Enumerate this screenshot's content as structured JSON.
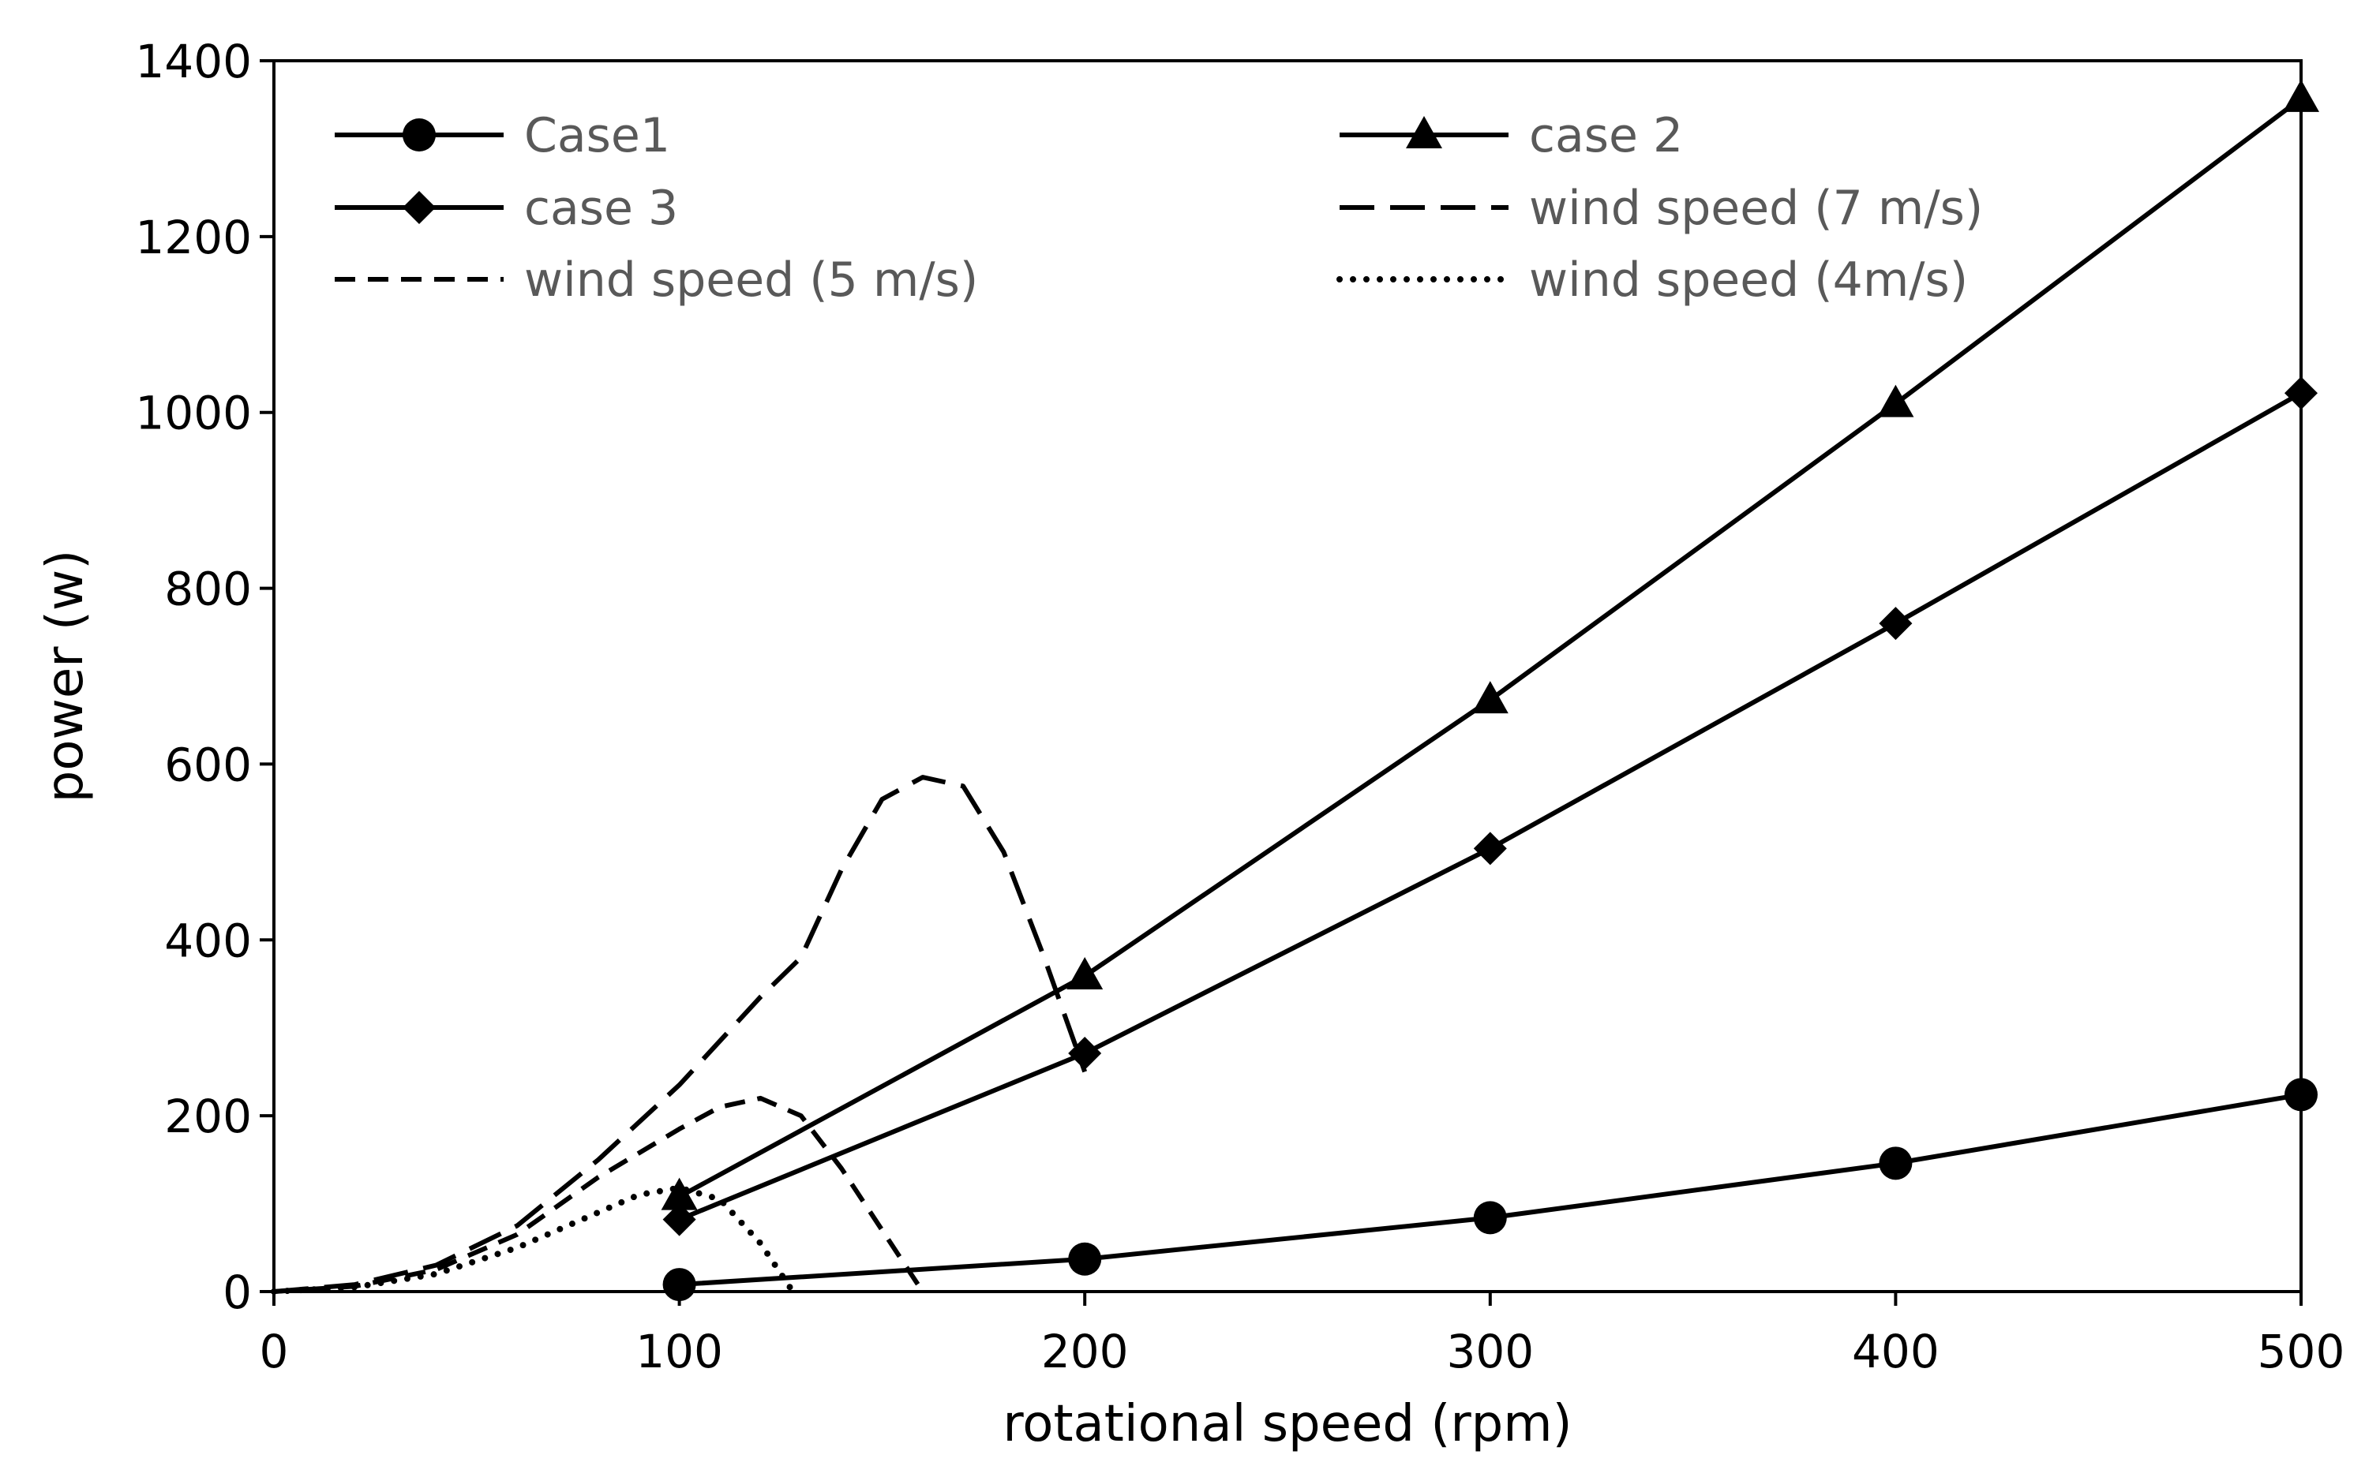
{
  "chart_data": {
    "type": "line",
    "title": "",
    "xlabel": "rotational speed (rpm)",
    "ylabel": "power (w)",
    "xlim": [
      0,
      500
    ],
    "ylim": [
      0,
      1400
    ],
    "xticks": [
      "0",
      "100",
      "200",
      "300",
      "400",
      "500"
    ],
    "yticks": [
      "0",
      "200",
      "400",
      "600",
      "800",
      "1000",
      "1200",
      "1400"
    ],
    "grid": false,
    "legend_position": "top",
    "series": [
      {
        "name": "Case1",
        "marker": "circle",
        "line": "solid",
        "x": [
          100,
          200,
          300,
          400,
          500
        ],
        "y": [
          8,
          37,
          84,
          146,
          224
        ]
      },
      {
        "name": "case 2",
        "marker": "triangle",
        "line": "solid",
        "x": [
          100,
          200,
          300,
          400,
          500
        ],
        "y": [
          108,
          359,
          673,
          1010,
          1357
        ]
      },
      {
        "name": "case 3",
        "marker": "diamond",
        "line": "solid",
        "x": [
          100,
          200,
          300,
          400,
          500
        ],
        "y": [
          82,
          271,
          504,
          760,
          1022
        ]
      },
      {
        "name": "wind speed (7 m/s)",
        "marker": "none",
        "line": "long-dash",
        "x": [
          0,
          20,
          40,
          60,
          80,
          100,
          120,
          130,
          140,
          150,
          160,
          170,
          180,
          190,
          200
        ],
        "y": [
          0,
          8,
          30,
          75,
          150,
          235,
          335,
          380,
          480,
          560,
          585,
          575,
          500,
          380,
          250
        ]
      },
      {
        "name": "wind speed (5 m/s)",
        "marker": "none",
        "line": "dash",
        "x": [
          0,
          20,
          40,
          60,
          80,
          100,
          110,
          120,
          130,
          140,
          150,
          160
        ],
        "y": [
          0,
          6,
          25,
          65,
          130,
          185,
          210,
          220,
          200,
          140,
          70,
          0
        ]
      },
      {
        "name": "wind speed (4m/s)",
        "marker": "none",
        "line": "dot",
        "x": [
          0,
          20,
          40,
          60,
          80,
          90,
          100,
          110,
          120,
          128
        ],
        "y": [
          0,
          5,
          20,
          50,
          90,
          110,
          118,
          105,
          55,
          0
        ]
      }
    ]
  }
}
